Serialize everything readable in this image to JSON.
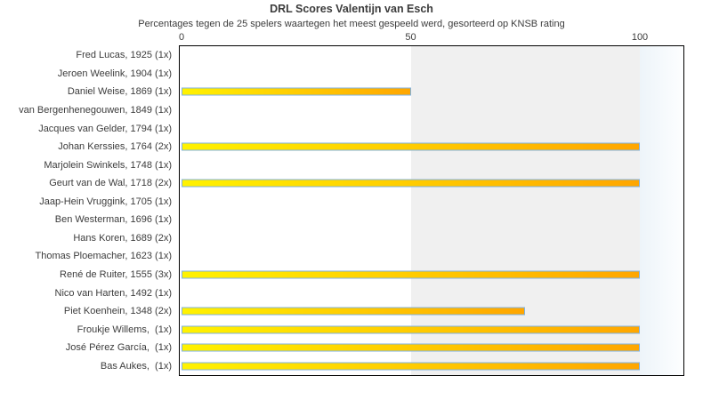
{
  "header": {
    "title": "DRL Scores Valentijn van Esch",
    "subtitle": "Percentages tegen de 25 spelers waartegen het meest gespeeld werd, gesorteerd op KNSB rating"
  },
  "chart_data": {
    "type": "bar",
    "orientation": "horizontal",
    "title": "DRL Scores Valentijn van Esch",
    "subtitle": "Percentages tegen de 25 spelers waartegen het meest gespeeld werd, gesorteerd op KNSB rating",
    "categories": [
      "Fred Lucas, 1925 (1x)",
      "Jeroen Weelink, 1904 (1x)",
      "Daniel Weise, 1869 (1x)",
      "van Bergenhenegouwen, 1849 (1x)",
      "Jacques van Gelder, 1794 (1x)",
      "Johan Kerssies, 1764 (2x)",
      "Marjolein Swinkels, 1748 (1x)",
      "Geurt van de Wal, 1718 (2x)",
      "Jaap-Hein Vruggink, 1705 (1x)",
      "Ben Westerman, 1696 (1x)",
      "Hans Koren, 1689 (2x)",
      "Thomas Ploemacher, 1623 (1x)",
      "René de Ruiter, 1555 (3x)",
      "Nico van Harten, 1492 (1x)",
      "Piet Koenhein, 1348 (2x)",
      "Froukje Willems,  (1x)",
      "José Pérez García,  (1x)",
      "Bas Aukes,  (1x)"
    ],
    "values": [
      0,
      0,
      50,
      0,
      0,
      100,
      0,
      100,
      0,
      0,
      0,
      0,
      100,
      0,
      75,
      100,
      100,
      100
    ],
    "xlabel": "",
    "ylabel": "",
    "xlim": [
      0,
      110
    ],
    "xticks": [
      0,
      50,
      100
    ],
    "axis_position": "top",
    "grid": false,
    "legend": "none",
    "colors": {
      "text": "#3c3c3c",
      "bar_gradient_start": "#fff200",
      "bar_gradient_end": "#ffa600",
      "bar_border": "#7fb2e2",
      "band_50_100": "#f0f0f0",
      "band_over_100_start": "#edf4f9",
      "band_over_100_end": "#fdfeff",
      "plot_border": "#000000",
      "plot_background": "#ffffff"
    }
  }
}
